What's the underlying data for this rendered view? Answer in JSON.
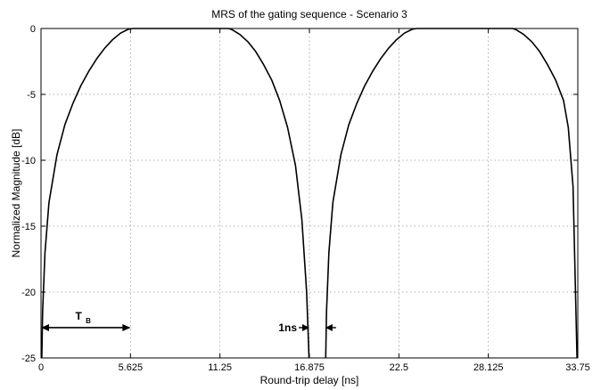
{
  "chart_data": {
    "type": "line",
    "title": "MRS of the gating sequence - Scenario 3",
    "xlabel": "Round-trip delay [ns]",
    "ylabel": "Normalized Magnitude [dB]",
    "xlim": [
      0,
      33.75
    ],
    "ylim": [
      -25,
      0
    ],
    "xticks": [
      "0",
      "5.625",
      "11.25",
      "16.875",
      "22.5",
      "28.125",
      "33.75"
    ],
    "yticks": [
      "0",
      "-5",
      "-10",
      "-15",
      "-20",
      "-25"
    ],
    "grid": true,
    "series": [
      {
        "x": [
          0.05,
          0.1,
          0.25,
          0.5,
          1.0,
          1.5,
          2.0,
          2.5,
          3.0,
          3.5,
          4.0,
          4.5,
          5.0,
          5.5,
          5.8,
          6.0,
          6.5,
          7.0,
          8.0,
          9.0,
          10.0,
          11.0,
          11.3,
          11.6,
          11.8,
          12.0,
          12.5,
          13.0,
          13.5,
          14.0,
          14.5,
          15.0,
          15.5,
          16.0,
          16.4,
          16.7,
          16.85
        ],
        "y": [
          -25,
          -21.5,
          -17.0,
          -13.2,
          -9.6,
          -7.3,
          -5.7,
          -4.35,
          -3.25,
          -2.3,
          -1.5,
          -0.85,
          -0.35,
          -0.05,
          0,
          0,
          0,
          0,
          0,
          0,
          0,
          0,
          0,
          0,
          0,
          -0.08,
          -0.45,
          -1.0,
          -1.75,
          -2.75,
          -3.9,
          -5.45,
          -7.5,
          -10.4,
          -14.5,
          -20.0,
          -25
        ]
      },
      {
        "x": [
          17.9,
          17.95,
          18.1,
          18.35,
          18.85,
          19.35,
          19.85,
          20.35,
          20.85,
          21.35,
          21.85,
          22.35,
          22.85,
          23.35,
          23.65,
          23.85,
          24.5,
          25.5,
          26.5,
          27.5,
          28.5,
          29.15,
          29.45,
          29.65,
          29.85,
          30.35,
          30.85,
          31.35,
          31.85,
          32.35,
          32.85,
          33.15,
          33.45,
          33.7
        ],
        "y": [
          -25,
          -21.5,
          -17.0,
          -13.2,
          -9.6,
          -7.3,
          -5.7,
          -4.35,
          -3.25,
          -2.3,
          -1.5,
          -0.85,
          -0.35,
          -0.05,
          0,
          0,
          0,
          0,
          0,
          0,
          0,
          0,
          0,
          0,
          -0.08,
          -0.45,
          -1.0,
          -1.75,
          -2.75,
          -3.9,
          -5.45,
          -7.5,
          -12.0,
          -25
        ]
      }
    ],
    "annotations": [
      {
        "label": "T",
        "subscript": "B",
        "x_start": 0,
        "x_end": 5.625,
        "y": -22.7
      },
      {
        "label": "1ns",
        "x_start": 16.875,
        "x_end": 17.875,
        "y": -22.7
      }
    ]
  }
}
